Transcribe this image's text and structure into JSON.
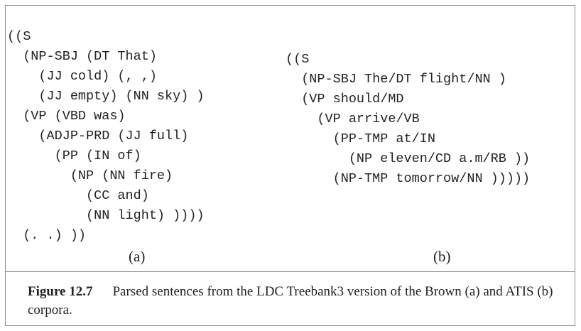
{
  "panel_a": {
    "lines": [
      {
        "text": "((S",
        "indent": 0
      },
      {
        "text": "(NP-SBJ (DT That)",
        "indent": 1
      },
      {
        "text": "(JJ cold) (, ,)",
        "indent": 2
      },
      {
        "text": "(JJ empty) (NN sky) )",
        "indent": 2
      },
      {
        "text": "(VP (VBD was)",
        "indent": 1
      },
      {
        "text": "(ADJP-PRD (JJ full)",
        "indent": 2
      },
      {
        "text": "(PP (IN of)",
        "indent": 3
      },
      {
        "text": "(NP (NN fire)",
        "indent": 4
      },
      {
        "text": "(CC and)",
        "indent": 5
      },
      {
        "text": "(NN light) ))))",
        "indent": 5
      },
      {
        "text": "(. .) ))",
        "indent": 1
      }
    ],
    "label": "(a)"
  },
  "panel_b": {
    "lines": [
      {
        "text": "((S",
        "indent": 0
      },
      {
        "text": "(NP-SBJ The/DT flight/NN )",
        "indent": 1
      },
      {
        "text": "(VP should/MD",
        "indent": 1
      },
      {
        "text": "(VP arrive/VB",
        "indent": 2
      },
      {
        "text": "(PP-TMP at/IN",
        "indent": 3
      },
      {
        "text": "(NP eleven/CD a.m/RB ))",
        "indent": 4
      },
      {
        "text": "(NP-TMP tomorrow/NN )))))",
        "indent": 3
      }
    ],
    "label": "(b)"
  },
  "caption": {
    "figure_label": "Figure 12.7",
    "text": "Parsed sentences from the LDC Treebank3 version of the Brown (a) and ATIS (b) corpora."
  }
}
